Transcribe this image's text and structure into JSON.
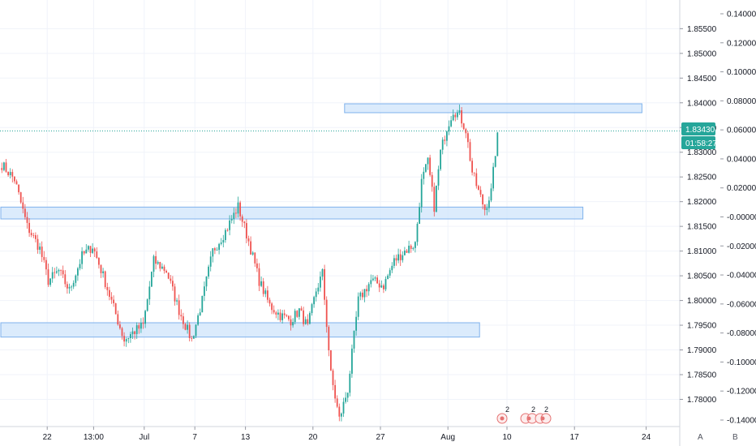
{
  "chart_data": {
    "type": "candlestick",
    "x_ticks": [
      "22",
      "13:00",
      "Jul",
      "7",
      "13",
      "20",
      "27",
      "Aug",
      "10",
      "17",
      "24"
    ],
    "y_ticks_right": [
      "1.85500",
      "1.85000",
      "1.84500",
      "1.84000",
      "1.83500",
      "1.83000",
      "1.82500",
      "1.82000",
      "1.81500",
      "1.81000",
      "1.80500",
      "1.80000",
      "1.79500",
      "1.79000",
      "1.78500",
      "1.78000"
    ],
    "y_ticks_left": [
      "0.14000",
      "0.12000",
      "0.10000",
      "0.08000",
      "0.06000",
      "0.04000",
      "0.02000",
      "-0.00000",
      "-0.02000",
      "-0.04000",
      "-0.06000",
      "-0.08000",
      "-0.10000",
      "-0.12000",
      "-0.14000"
    ],
    "ylim": [
      1.7745,
      1.8608
    ],
    "current_price": "1.83430",
    "current_price_value": 1.8343,
    "countdown": "01:58:27",
    "zones": [
      {
        "name": "resistance-zone",
        "y_top": 1.8398,
        "y_bottom": 1.838,
        "x_start_bar": 163,
        "x_end_bar": 304
      },
      {
        "name": "support-zone-upper",
        "y_top": 1.8189,
        "y_bottom": 1.8165,
        "x_start_bar": 0,
        "x_end_bar": 276
      },
      {
        "name": "support-zone-lower",
        "y_top": 1.7955,
        "y_bottom": 1.7926,
        "x_start_bar": 0,
        "x_end_bar": 227
      }
    ],
    "path": [
      [
        0,
        1.8275
      ],
      [
        6,
        1.8245
      ],
      [
        12,
        1.815
      ],
      [
        18,
        1.8105
      ],
      [
        22,
        1.804
      ],
      [
        27,
        1.806
      ],
      [
        32,
        1.802
      ],
      [
        38,
        1.809
      ],
      [
        43,
        1.811
      ],
      [
        48,
        1.805
      ],
      [
        53,
        1.7985
      ],
      [
        58,
        1.792
      ],
      [
        62,
        1.7935
      ],
      [
        67,
        1.795
      ],
      [
        72,
        1.808
      ],
      [
        78,
        1.806
      ],
      [
        84,
        1.798
      ],
      [
        90,
        1.792
      ],
      [
        95,
        1.8
      ],
      [
        100,
        1.81
      ],
      [
        106,
        1.814
      ],
      [
        112,
        1.819
      ],
      [
        117,
        1.812
      ],
      [
        122,
        1.804
      ],
      [
        127,
        1.799
      ],
      [
        132,
        1.797
      ],
      [
        137,
        1.796
      ],
      [
        141,
        1.798
      ],
      [
        145,
        1.7945
      ],
      [
        149,
        1.802
      ],
      [
        152,
        1.8055
      ],
      [
        156,
        1.785
      ],
      [
        160,
        1.776
      ],
      [
        164,
        1.782
      ],
      [
        169,
        1.8
      ],
      [
        175,
        1.804
      ],
      [
        181,
        1.803
      ],
      [
        186,
        1.808
      ],
      [
        191,
        1.81
      ],
      [
        196,
        1.8115
      ],
      [
        199,
        1.824
      ],
      [
        202,
        1.828
      ],
      [
        205,
        1.819
      ],
      [
        208,
        1.83
      ],
      [
        211,
        1.835
      ],
      [
        214,
        1.8385
      ],
      [
        217,
        1.8375
      ],
      [
        220,
        1.8345
      ],
      [
        223,
        1.826
      ],
      [
        226,
        1.822
      ],
      [
        229,
        1.8185
      ],
      [
        232,
        1.822
      ],
      [
        235,
        1.834
      ]
    ]
  },
  "bottom_icons": [
    {
      "label": "2"
    },
    {
      "label": "2"
    },
    {
      "label": "2"
    }
  ],
  "corner_left": "A",
  "corner_right": "B",
  "colors": {
    "up": "#26a69a",
    "down": "#ef5350",
    "zone_fill": "#cfe4fb",
    "zone_stroke": "#7fb2ec",
    "price_tag": "#26a69a",
    "grid": "#f0f3fa",
    "axis_text": "#131722"
  }
}
